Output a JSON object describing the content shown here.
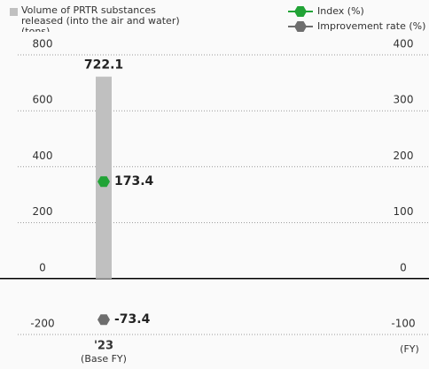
{
  "chart_data": {
    "type": "bar",
    "categories": [
      "'23"
    ],
    "category_notes": [
      "(Base FY)"
    ],
    "x_unit": "(FY)",
    "ylim": [
      -200,
      800
    ],
    "yticks": [
      -200,
      0,
      200,
      400,
      600,
      800
    ],
    "y2lim": [
      -100,
      400
    ],
    "y2ticks": [
      -100,
      0,
      100,
      200,
      300,
      400
    ],
    "grid": true,
    "series": [
      {
        "name": "Volume of PRTR substances released (into the air and water) (tons)",
        "color": "#c0c0c0",
        "kind": "bar",
        "values": [
          722.1
        ]
      },
      {
        "name": "Index (%)",
        "color": "#21a336",
        "kind": "point",
        "axis": "y2",
        "values": [
          173.4
        ]
      },
      {
        "name": "Improvement rate (%)",
        "color": "#6e6e6e",
        "kind": "point",
        "axis": "y2",
        "values": [
          -73.4
        ]
      }
    ]
  }
}
